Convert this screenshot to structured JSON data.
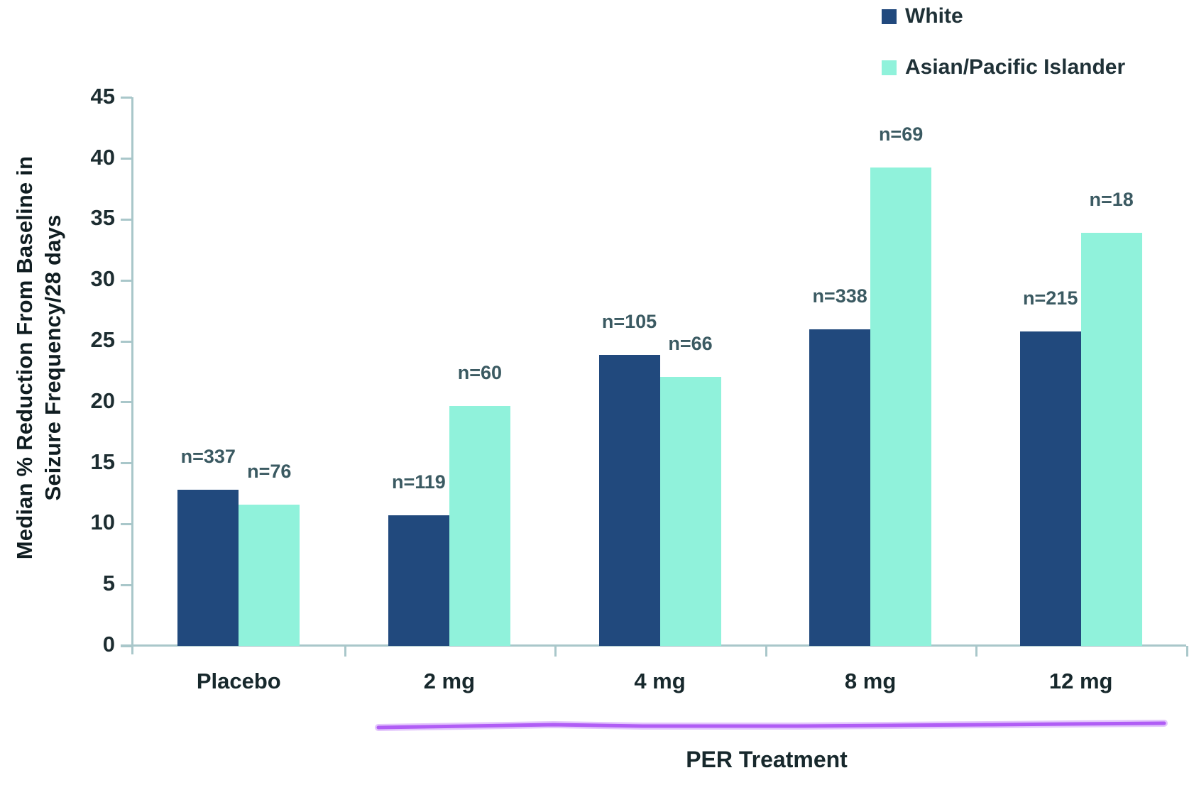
{
  "chart_data": {
    "type": "bar",
    "categories": [
      "Placebo",
      "2 mg",
      "4 mg",
      "8 mg",
      "12 mg"
    ],
    "series": [
      {
        "name": "White",
        "color": "#21497d",
        "values": [
          12.8,
          10.7,
          23.9,
          26.0,
          25.8
        ],
        "bar_labels": [
          "n=337",
          "n=119",
          "n=105",
          "n=338",
          "n=215"
        ]
      },
      {
        "name": "Asian/Pacific Islander",
        "color": "#90f2db",
        "values": [
          11.6,
          19.7,
          22.1,
          39.3,
          33.9
        ],
        "bar_labels": [
          "n=76",
          "n=60",
          "n=66",
          "n=69",
          "n=18"
        ]
      }
    ],
    "ylabel": "Median % Reduction From Baseline in Seizure Frequency/28 days",
    "ylabel_lines": [
      "Median % Reduction From Baseline in",
      "Seizure Frequency/28 days"
    ],
    "xlabel": "PER Treatment",
    "ylim": [
      0,
      45
    ],
    "yticks": [
      0,
      5,
      10,
      15,
      20,
      25,
      30,
      35,
      40,
      45
    ],
    "grid": false,
    "legend_position": "top-right",
    "annotations": {
      "treatment_underline": {
        "covers": [
          "2 mg",
          "4 mg",
          "8 mg",
          "12 mg"
        ],
        "color": "#b05df5"
      }
    },
    "colors": {
      "axis": "#a9c7ca",
      "tick_text": "#1d2d31",
      "n_label_text": "#3b5a62",
      "xlabel_text": "#17282c",
      "legend_text": "#1f3137",
      "background": "#ffffff"
    }
  }
}
